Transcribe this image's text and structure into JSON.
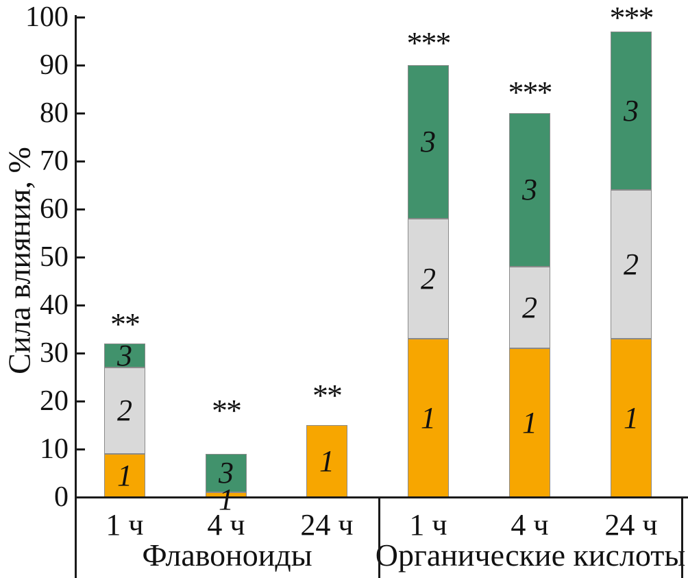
{
  "chart_data": {
    "type": "bar",
    "stacked": true,
    "title": "",
    "ylabel": "Сила влияния, %",
    "xlabel": "",
    "ylim": [
      0,
      100
    ],
    "yticks": [
      0,
      10,
      20,
      30,
      40,
      50,
      60,
      70,
      80,
      90,
      100
    ],
    "grid": false,
    "legend_position": "none",
    "groups": [
      {
        "label": "Флавоноиды",
        "categories": [
          "1 ч",
          "4 ч",
          "24 ч"
        ]
      },
      {
        "label": "Органические кислоты",
        "categories": [
          "1 ч",
          "4 ч",
          "24 ч"
        ]
      }
    ],
    "categories": [
      "Флавоноиды 1 ч",
      "Флавоноиды 4 ч",
      "Флавоноиды 24 ч",
      "Органические кислоты 1 ч",
      "Органические кислоты 4 ч",
      "Органические кислоты 24 ч"
    ],
    "series": [
      {
        "name": "1",
        "color": "#F7A600",
        "values": [
          9,
          1,
          15,
          33,
          31,
          33
        ]
      },
      {
        "name": "2",
        "color": "#D9D9D9",
        "values": [
          18,
          0,
          0,
          25,
          17,
          31
        ]
      },
      {
        "name": "3",
        "color": "#41926C",
        "values": [
          5,
          8,
          0,
          32,
          32,
          33
        ]
      }
    ],
    "totals": [
      32,
      9,
      15,
      90,
      80,
      97
    ],
    "significance": [
      "**",
      "**",
      "**",
      "***",
      "***",
      "***"
    ]
  },
  "colors": {
    "axis": "#1A1A1A",
    "bar_border": "#8A8A8A",
    "background": "#FFFFFF"
  }
}
